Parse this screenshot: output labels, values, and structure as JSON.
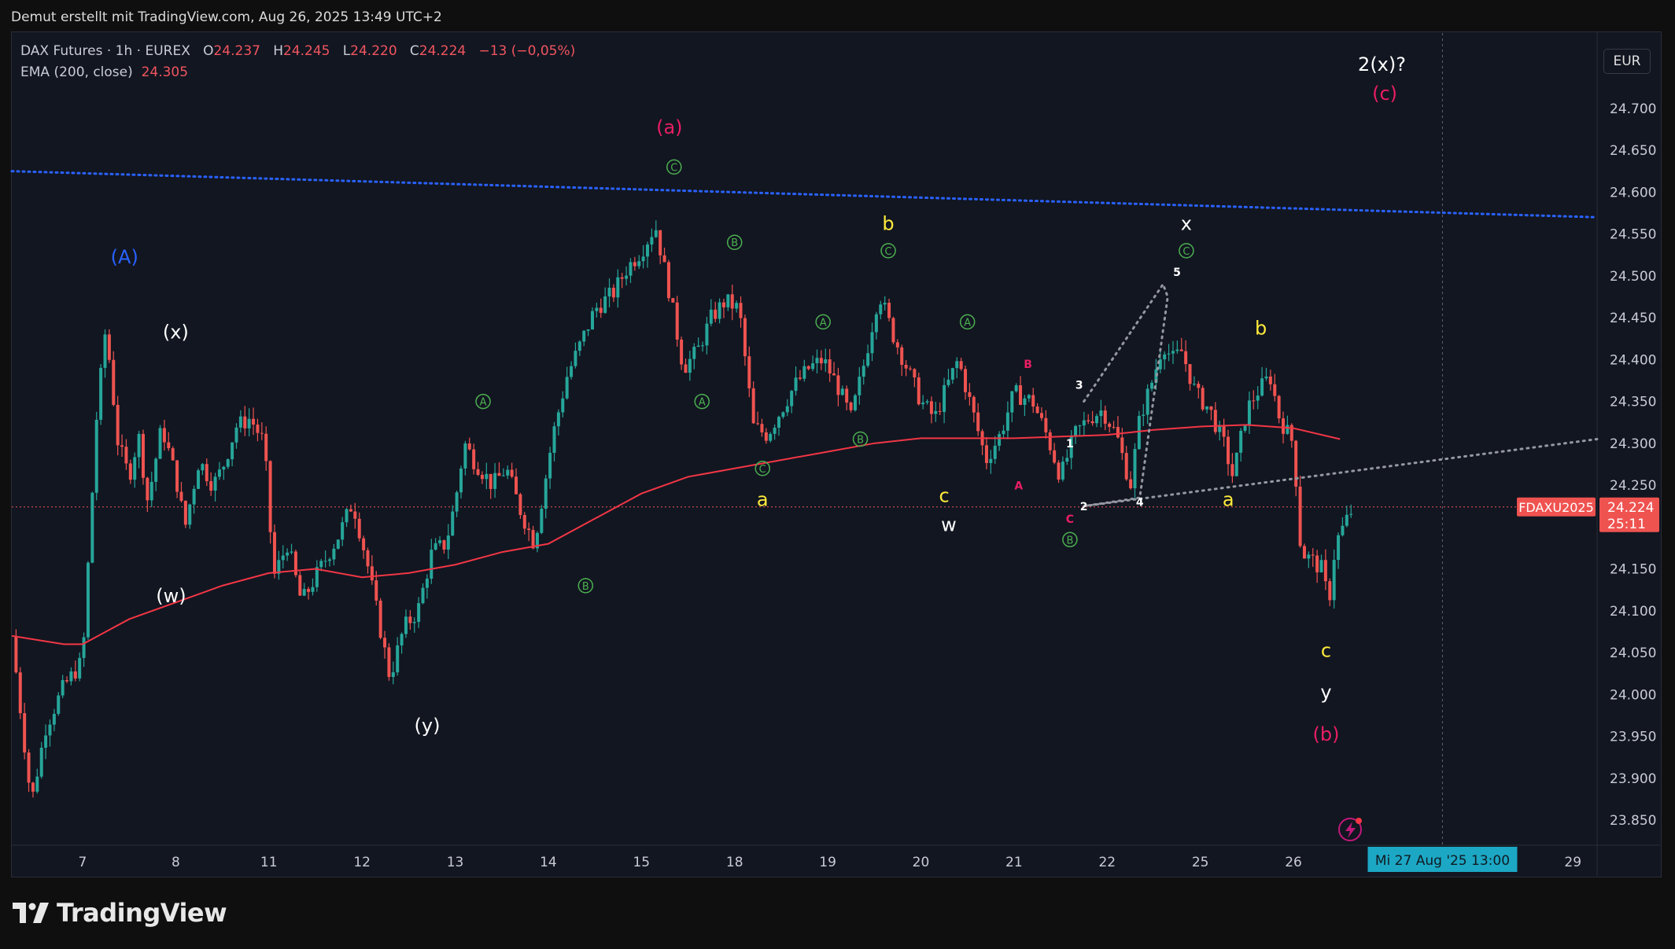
{
  "header": {
    "caption": "Demut erstellt mit TradingView.com, Aug 26, 2025 13:49 UTC+2"
  },
  "legend": {
    "symbol": "DAX Futures · 1h · EUREX",
    "o_label": "O",
    "o_value": "24.237",
    "h_label": "H",
    "h_value": "24.245",
    "l_label": "L",
    "l_value": "24.220",
    "c_label": "C",
    "c_value": "24.224",
    "change": "−13 (−0,05%)",
    "ema_label": "EMA (200, close)",
    "ema_value": "24.305"
  },
  "currency_button": "EUR",
  "symbol_tag": "FDAXU2025",
  "price_tag": {
    "price": "24.224",
    "countdown": "25:11"
  },
  "crosshair_date": "Mi 27 Aug '25   13:00",
  "footer": {
    "brand": "TradingView"
  },
  "colors": {
    "up": "#26a69a",
    "down": "#ef5350",
    "ema": "#f23645",
    "blue_line": "#2962ff",
    "annot_red": "#e91e63",
    "annot_yellow": "#ffeb3b",
    "annot_green": "#4caf50",
    "annot_blue": "#2962ff",
    "annot_white": "#ffffff"
  },
  "chart_data": {
    "type": "candlestick",
    "interval": "1h",
    "xlabel": "",
    "ylabel": "",
    "ylim": [
      23820,
      24790
    ],
    "y_ticks": [
      24700,
      24650,
      24600,
      24550,
      24500,
      24450,
      24400,
      24350,
      24300,
      24250,
      24150,
      24100,
      24050,
      24000,
      23950,
      23900,
      23850
    ],
    "x_tick_labels": [
      "7",
      "8",
      "11",
      "12",
      "13",
      "14",
      "15",
      "18",
      "19",
      "20",
      "21",
      "22",
      "25",
      "26",
      "29"
    ],
    "x_ticks": [
      1,
      2,
      3,
      4,
      5,
      6,
      7,
      8,
      9,
      10,
      11,
      12,
      13,
      14,
      17
    ],
    "x_range": [
      0.24,
      17.26
    ],
    "price_path": [
      [
        0.24,
        24070
      ],
      [
        0.45,
        23870
      ],
      [
        0.6,
        23960
      ],
      [
        0.8,
        24010
      ],
      [
        1.0,
        24040
      ],
      [
        1.15,
        24330
      ],
      [
        1.25,
        24440
      ],
      [
        1.38,
        24300
      ],
      [
        1.5,
        24260
      ],
      [
        1.6,
        24310
      ],
      [
        1.7,
        24230
      ],
      [
        1.85,
        24320
      ],
      [
        2.0,
        24260
      ],
      [
        2.1,
        24200
      ],
      [
        2.25,
        24280
      ],
      [
        2.4,
        24250
      ],
      [
        2.5,
        24270
      ],
      [
        2.65,
        24320
      ],
      [
        2.8,
        24330
      ],
      [
        2.95,
        24300
      ],
      [
        3.05,
        24140
      ],
      [
        3.2,
        24180
      ],
      [
        3.35,
        24110
      ],
      [
        3.55,
        24150
      ],
      [
        3.75,
        24190
      ],
      [
        3.9,
        24230
      ],
      [
        4.05,
        24160
      ],
      [
        4.3,
        24020
      ],
      [
        4.45,
        24080
      ],
      [
        4.6,
        24100
      ],
      [
        4.75,
        24170
      ],
      [
        4.9,
        24180
      ],
      [
        5.0,
        24230
      ],
      [
        5.1,
        24300
      ],
      [
        5.2,
        24280
      ],
      [
        5.4,
        24250
      ],
      [
        5.55,
        24270
      ],
      [
        5.7,
        24220
      ],
      [
        5.85,
        24180
      ],
      [
        6.05,
        24310
      ],
      [
        6.2,
        24380
      ],
      [
        6.35,
        24420
      ],
      [
        6.5,
        24460
      ],
      [
        6.7,
        24480
      ],
      [
        6.85,
        24510
      ],
      [
        7.0,
        24530
      ],
      [
        7.15,
        24560
      ],
      [
        7.3,
        24480
      ],
      [
        7.45,
        24390
      ],
      [
        7.6,
        24410
      ],
      [
        7.75,
        24450
      ],
      [
        7.9,
        24470
      ],
      [
        8.05,
        24460
      ],
      [
        8.2,
        24320
      ],
      [
        8.35,
        24310
      ],
      [
        8.5,
        24340
      ],
      [
        8.65,
        24370
      ],
      [
        8.8,
        24390
      ],
      [
        8.95,
        24400
      ],
      [
        9.1,
        24370
      ],
      [
        9.25,
        24330
      ],
      [
        9.4,
        24400
      ],
      [
        9.55,
        24480
      ],
      [
        9.7,
        24430
      ],
      [
        9.85,
        24390
      ],
      [
        10.0,
        24350
      ],
      [
        10.15,
        24330
      ],
      [
        10.25,
        24360
      ],
      [
        10.4,
        24400
      ],
      [
        10.55,
        24340
      ],
      [
        10.7,
        24280
      ],
      [
        10.85,
        24310
      ],
      [
        11.0,
        24360
      ],
      [
        11.2,
        24350
      ],
      [
        11.35,
        24310
      ],
      [
        11.5,
        24260
      ],
      [
        11.65,
        24310
      ],
      [
        11.8,
        24330
      ],
      [
        11.95,
        24340
      ],
      [
        12.1,
        24310
      ],
      [
        12.25,
        24250
      ],
      [
        12.35,
        24330
      ],
      [
        12.5,
        24380
      ],
      [
        12.6,
        24420
      ],
      [
        12.7,
        24400
      ],
      [
        12.8,
        24410
      ],
      [
        12.95,
        24360
      ],
      [
        13.1,
        24340
      ],
      [
        13.25,
        24300
      ],
      [
        13.35,
        24260
      ],
      [
        13.5,
        24340
      ],
      [
        13.6,
        24360
      ],
      [
        13.75,
        24380
      ],
      [
        13.85,
        24330
      ],
      [
        14.0,
        24300
      ],
      [
        14.08,
        24170
      ],
      [
        14.2,
        24160
      ],
      [
        14.3,
        24150
      ],
      [
        14.38,
        24110
      ],
      [
        14.45,
        24180
      ],
      [
        14.6,
        24215
      ],
      [
        14.65,
        24224
      ]
    ],
    "ema_path": [
      [
        0.24,
        24070
      ],
      [
        0.8,
        24060
      ],
      [
        1.0,
        24060
      ],
      [
        1.5,
        24090
      ],
      [
        2.0,
        24110
      ],
      [
        2.5,
        24130
      ],
      [
        3.0,
        24145
      ],
      [
        3.5,
        24150
      ],
      [
        4.0,
        24140
      ],
      [
        4.5,
        24145
      ],
      [
        5.0,
        24155
      ],
      [
        5.5,
        24170
      ],
      [
        6.0,
        24180
      ],
      [
        6.5,
        24210
      ],
      [
        7.0,
        24240
      ],
      [
        7.5,
        24260
      ],
      [
        8.0,
        24270
      ],
      [
        8.5,
        24280
      ],
      [
        9.0,
        24290
      ],
      [
        9.5,
        24300
      ],
      [
        10.0,
        24306
      ],
      [
        10.5,
        24306
      ],
      [
        11.0,
        24306
      ],
      [
        11.5,
        24308
      ],
      [
        12.0,
        24310
      ],
      [
        12.5,
        24316
      ],
      [
        13.0,
        24320
      ],
      [
        13.5,
        24322
      ],
      [
        14.0,
        24318
      ],
      [
        14.5,
        24305
      ]
    ],
    "blue_dotted_line": [
      [
        0.24,
        24625
      ],
      [
        17.26,
        24570
      ]
    ],
    "grey_dotted_line": [
      [
        11.75,
        24225
      ],
      [
        17.26,
        24305
      ]
    ],
    "dotted_wave": [
      [
        11.75,
        24350
      ],
      [
        12.6,
        24490
      ],
      [
        12.65,
        24475
      ],
      [
        12.35,
        24235
      ],
      [
        11.75,
        24225
      ]
    ],
    "last_price": 24224,
    "ema_value": 24305,
    "crosshair_x": 15.6,
    "annotations": [
      {
        "text": "(A)",
        "x": 1.45,
        "y": 24515,
        "color": "#2962ff"
      },
      {
        "text": "(x)",
        "x": 2.0,
        "y": 24425,
        "color": "#ffffff"
      },
      {
        "text": "(w)",
        "x": 1.95,
        "y": 24110,
        "color": "#ffffff"
      },
      {
        "text": "(y)",
        "x": 4.7,
        "y": 23955,
        "color": "#ffffff"
      },
      {
        "text": "(a)",
        "x": 7.3,
        "y": 24670,
        "color": "#e91e63"
      },
      {
        "text": "b",
        "x": 9.65,
        "y": 24555,
        "color": "#ffeb3b"
      },
      {
        "text": "a",
        "x": 8.3,
        "y": 24225,
        "color": "#ffeb3b"
      },
      {
        "text": "c",
        "x": 10.25,
        "y": 24230,
        "color": "#ffeb3b"
      },
      {
        "text": "w",
        "x": 10.3,
        "y": 24195,
        "color": "#ffffff"
      },
      {
        "text": "x",
        "x": 12.85,
        "y": 24555,
        "color": "#ffffff"
      },
      {
        "text": "b",
        "x": 13.65,
        "y": 24430,
        "color": "#ffeb3b"
      },
      {
        "text": "a",
        "x": 13.3,
        "y": 24225,
        "color": "#ffeb3b"
      },
      {
        "text": "c",
        "x": 14.35,
        "y": 24045,
        "color": "#ffeb3b"
      },
      {
        "text": "y",
        "x": 14.35,
        "y": 23995,
        "color": "#ffffff"
      },
      {
        "text": "(b)",
        "x": 14.35,
        "y": 23945,
        "color": "#e91e63"
      },
      {
        "text": "2(x)?",
        "x": 14.95,
        "y": 24745,
        "color": "#ffffff"
      },
      {
        "text": "(c)",
        "x": 14.98,
        "y": 24710,
        "color": "#e91e63"
      },
      {
        "text": "A",
        "x": 11.05,
        "y": 24245,
        "color": "#e91e63"
      },
      {
        "text": "B",
        "x": 11.15,
        "y": 24390,
        "color": "#e91e63"
      },
      {
        "text": "C",
        "x": 11.6,
        "y": 24205,
        "color": "#e91e63"
      },
      {
        "text": "1",
        "x": 11.6,
        "y": 24295,
        "color": "#ffffff"
      },
      {
        "text": "2",
        "x": 11.75,
        "y": 24220,
        "color": "#ffffff"
      },
      {
        "text": "3",
        "x": 11.7,
        "y": 24365,
        "color": "#ffffff"
      },
      {
        "text": "4",
        "x": 12.35,
        "y": 24225,
        "color": "#ffffff"
      },
      {
        "text": "5",
        "x": 12.75,
        "y": 24500,
        "color": "#ffffff"
      }
    ],
    "circle_markers": [
      {
        "text": "A",
        "x": 5.3,
        "y": 24350
      },
      {
        "text": "B",
        "x": 6.4,
        "y": 24130
      },
      {
        "text": "C",
        "x": 7.35,
        "y": 24630
      },
      {
        "text": "B",
        "x": 8.0,
        "y": 24540
      },
      {
        "text": "A",
        "x": 7.65,
        "y": 24350
      },
      {
        "text": "C",
        "x": 8.3,
        "y": 24270
      },
      {
        "text": "A",
        "x": 8.95,
        "y": 24445
      },
      {
        "text": "B",
        "x": 9.35,
        "y": 24305
      },
      {
        "text": "C",
        "x": 9.65,
        "y": 24530
      },
      {
        "text": "A",
        "x": 10.5,
        "y": 24445
      },
      {
        "text": "B",
        "x": 11.6,
        "y": 24185
      },
      {
        "text": "C",
        "x": 12.85,
        "y": 24530
      }
    ]
  }
}
